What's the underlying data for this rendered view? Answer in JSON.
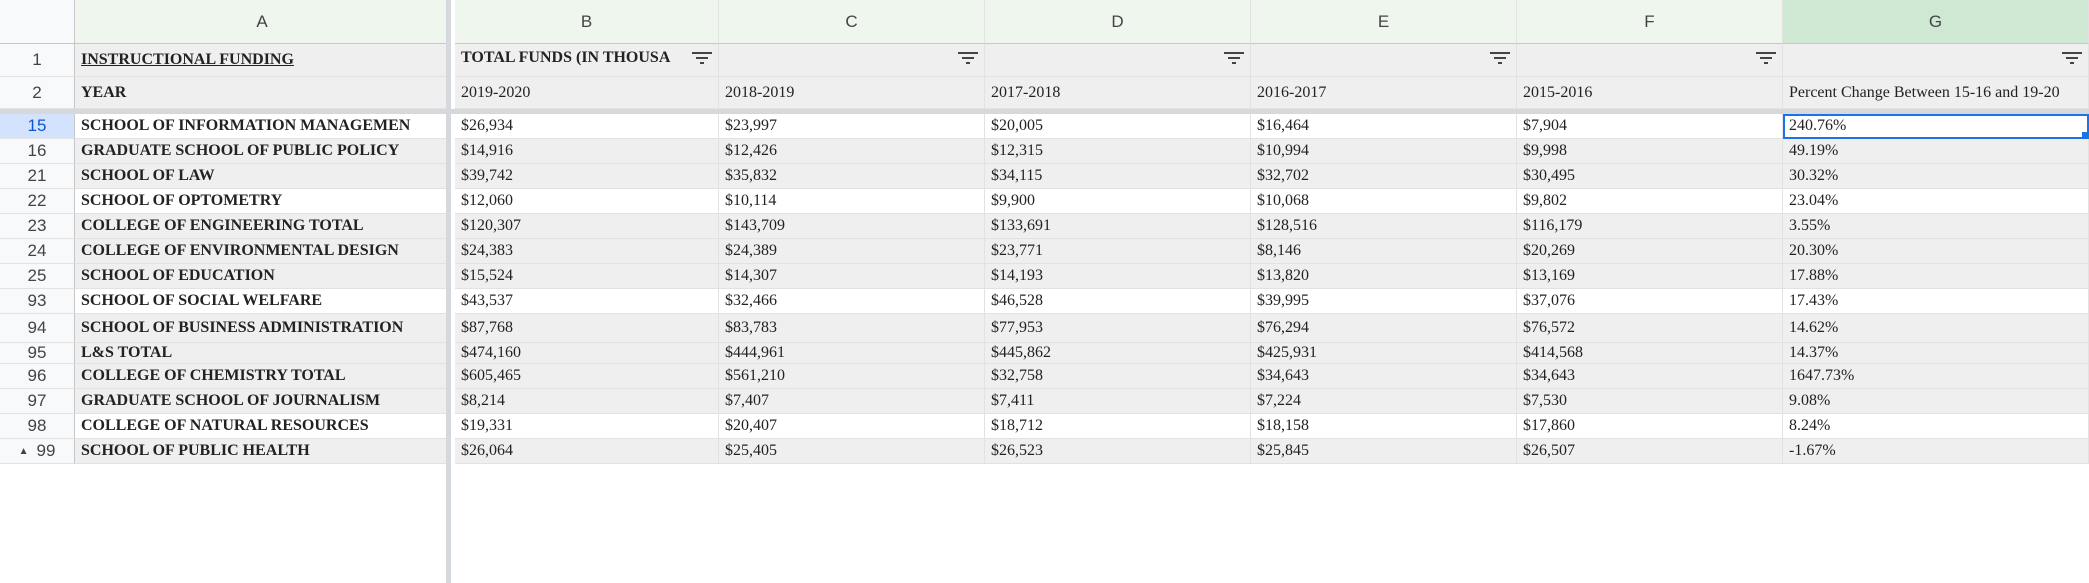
{
  "columns": [
    "A",
    "B",
    "C",
    "D",
    "E",
    "F",
    "G"
  ],
  "header_rows": [
    {
      "num": "1",
      "cells": [
        "INSTRUCTIONAL FUNDING",
        "TOTAL FUNDS (IN THOUSA",
        "",
        "",
        "",
        "",
        ""
      ]
    },
    {
      "num": "2",
      "cells": [
        "YEAR",
        "2019-2020",
        "2018-2019",
        "2017-2018",
        "2016-2017",
        "2015-2016",
        "Percent Change Between 15-16 and 19-20"
      ]
    }
  ],
  "rows": [
    {
      "num": "15",
      "cells": [
        "SCHOOL OF INFORMATION MANAGEMEN",
        "$26,934",
        "$23,997",
        "$20,005",
        "$16,464",
        "$7,904",
        "240.76%"
      ]
    },
    {
      "num": "16",
      "cells": [
        "GRADUATE SCHOOL OF PUBLIC POLICY",
        "$14,916",
        "$12,426",
        "$12,315",
        "$10,994",
        "$9,998",
        "49.19%"
      ]
    },
    {
      "num": "21",
      "cells": [
        "SCHOOL OF LAW",
        "$39,742",
        "$35,832",
        "$34,115",
        "$32,702",
        "$30,495",
        "30.32%"
      ]
    },
    {
      "num": "22",
      "cells": [
        "SCHOOL OF OPTOMETRY",
        "$12,060",
        "$10,114",
        "$9,900",
        "$10,068",
        "$9,802",
        "23.04%"
      ]
    },
    {
      "num": "23",
      "cells": [
        "COLLEGE OF ENGINEERING TOTAL",
        "$120,307",
        "$143,709",
        "$133,691",
        "$128,516",
        "$116,179",
        "3.55%"
      ]
    },
    {
      "num": "24",
      "cells": [
        "COLLEGE OF ENVIRONMENTAL DESIGN",
        "$24,383",
        "$24,389",
        "$23,771",
        "$8,146",
        "$20,269",
        "20.30%"
      ]
    },
    {
      "num": "25",
      "cells": [
        "SCHOOL OF EDUCATION",
        "$15,524",
        "$14,307",
        "$14,193",
        "$13,820",
        "$13,169",
        "17.88%"
      ]
    },
    {
      "num": "93",
      "cells": [
        "SCHOOL OF SOCIAL WELFARE",
        "$43,537",
        "$32,466",
        "$46,528",
        "$39,995",
        "$37,076",
        "17.43%"
      ]
    },
    {
      "num": "94",
      "cells": [
        "SCHOOL OF BUSINESS ADMINISTRATION",
        "$87,768",
        "$83,783",
        "$77,953",
        "$76,294",
        "$76,572",
        "14.62%"
      ]
    },
    {
      "num": "95",
      "cells": [
        "L&S TOTAL",
        "$474,160",
        "$444,961",
        "$445,862",
        "$425,931",
        "$414,568",
        "14.37%"
      ]
    },
    {
      "num": "96",
      "cells": [
        "COLLEGE OF CHEMISTRY TOTAL",
        "$605,465",
        "$561,210",
        "$32,758",
        "$34,643",
        "$34,643",
        "1647.73%"
      ]
    },
    {
      "num": "97",
      "cells": [
        "GRADUATE SCHOOL OF JOURNALISM",
        "$8,214",
        "$7,407",
        "$7,411",
        "$7,224",
        "$7,530",
        "9.08%"
      ]
    },
    {
      "num": "98",
      "cells": [
        "COLLEGE OF NATURAL RESOURCES",
        "$19,331",
        "$20,407",
        "$18,712",
        "$18,158",
        "$17,860",
        "8.24%"
      ]
    },
    {
      "num": "99",
      "cells": [
        "SCHOOL OF PUBLIC HEALTH",
        "$26,064",
        "$25,405",
        "$26,523",
        "$25,845",
        "$26,507",
        "-1.67%"
      ]
    }
  ],
  "colors": {
    "accent": "#1a73e8",
    "filter_active": "#188038",
    "header_bg": "#eef6ee"
  }
}
